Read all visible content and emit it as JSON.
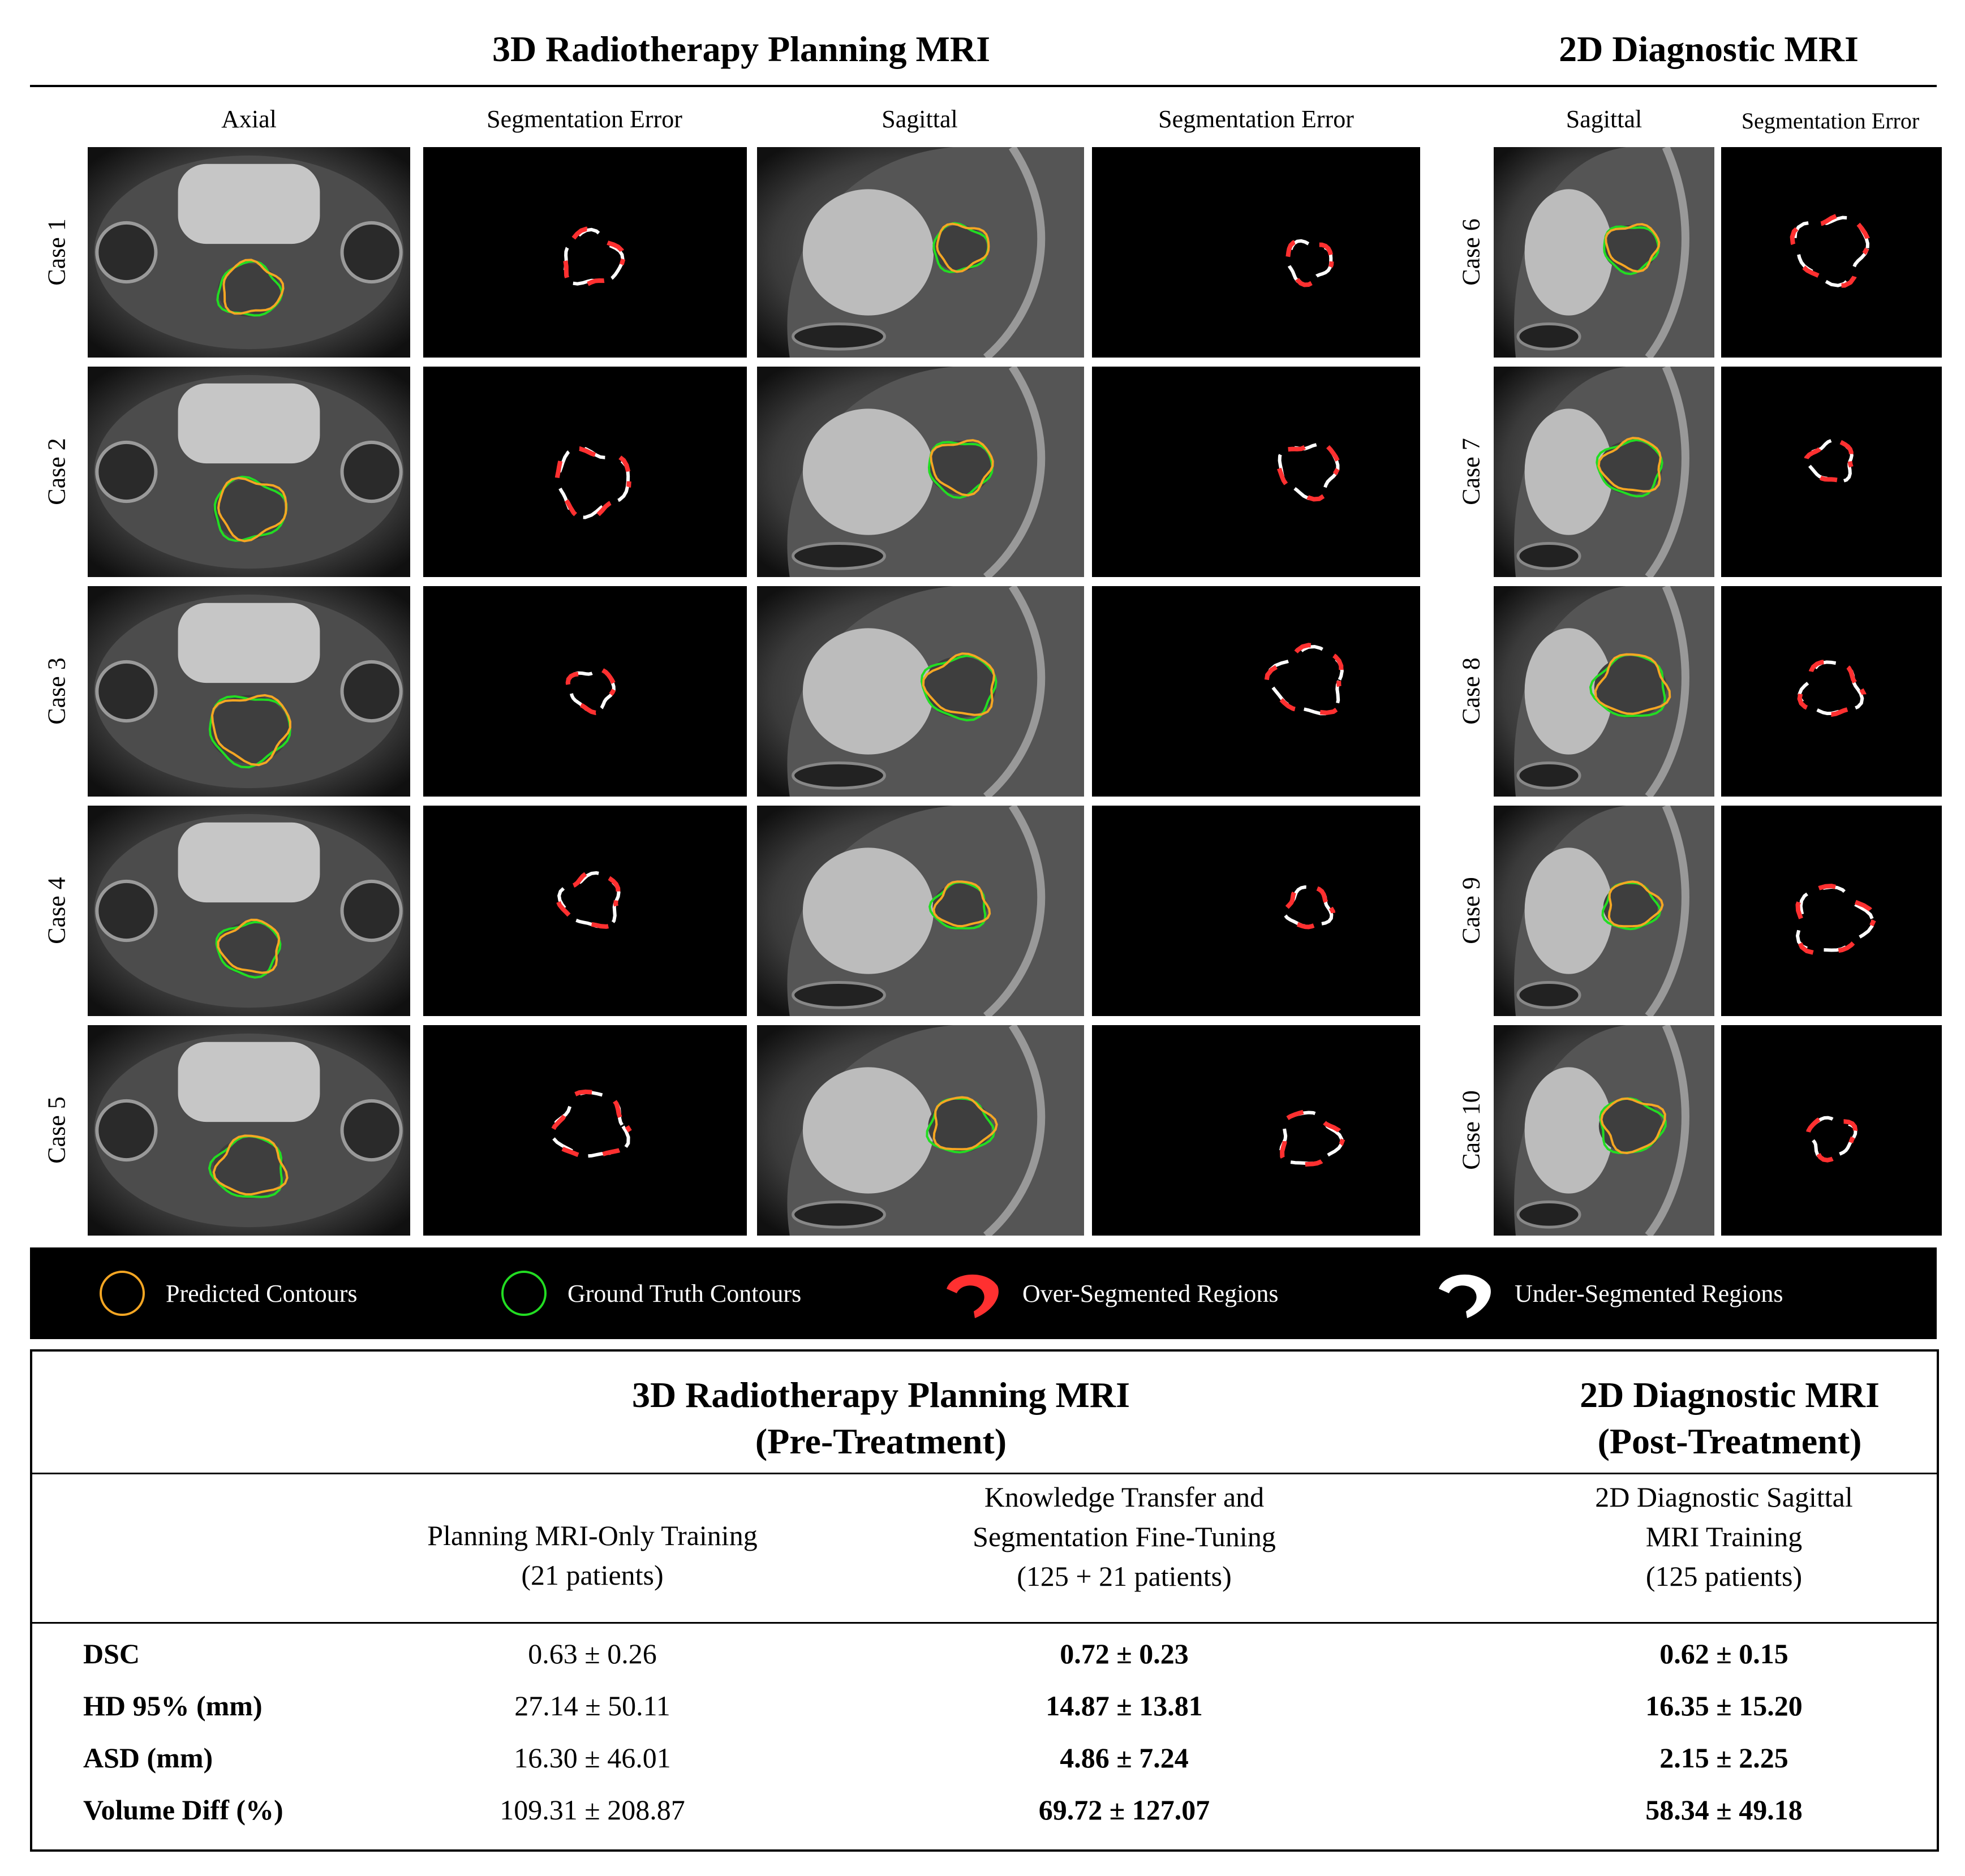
{
  "figure": {
    "left_title": "3D Radiotherapy Planning MRI",
    "right_title": "2D Diagnostic MRI",
    "columns": [
      "Axial",
      "Segmentation Error",
      "Sagittal",
      "Segmentation Error",
      "Sagittal",
      "Segmentation Error"
    ],
    "left_cases": [
      "Case 1",
      "Case 2",
      "Case 3",
      "Case 4",
      "Case 5"
    ],
    "right_cases": [
      "Case 6",
      "Case 7",
      "Case 8",
      "Case 9",
      "Case 10"
    ]
  },
  "legend": {
    "predicted": "Predicted Contours",
    "ground_truth": "Ground Truth Contours",
    "over": "Over-Segmented Regions",
    "under": "Under-Segmented Regions"
  },
  "colors": {
    "predicted": "#f5a623",
    "ground_truth": "#22dd22",
    "over": "#ff3030",
    "under": "#ffffff"
  },
  "table": {
    "left_header": [
      "3D Radiotherapy Planning MRI",
      "(Pre-Treatment)"
    ],
    "right_header": [
      "2D Diagnostic MRI",
      "(Post-Treatment)"
    ],
    "col1": [
      "Planning MRI-Only Training",
      "(21 patients)"
    ],
    "col2": [
      "Knowledge Transfer and",
      "Segmentation Fine-Tuning",
      "(125 + 21 patients)"
    ],
    "col3": [
      "2D Diagnostic Sagittal",
      "MRI Training",
      "(125 patients)"
    ],
    "rows": [
      {
        "metric": "DSC",
        "v1": "0.63 ± 0.26",
        "v2": "0.72 ± 0.23",
        "v3": "0.62 ± 0.15"
      },
      {
        "metric": "HD 95% (mm)",
        "v1": "27.14 ± 50.11",
        "v2": "14.87 ± 13.81",
        "v3": "16.35 ± 15.20"
      },
      {
        "metric": "ASD (mm)",
        "v1": "16.30 ± 46.01",
        "v2": "4.86 ± 7.24",
        "v3": "2.15 ± 2.25"
      },
      {
        "metric": "Volume Diff (%)",
        "v1": "109.31 ± 208.87",
        "v2": "69.72 ± 127.07",
        "v3": "58.34 ± 49.18"
      }
    ]
  }
}
